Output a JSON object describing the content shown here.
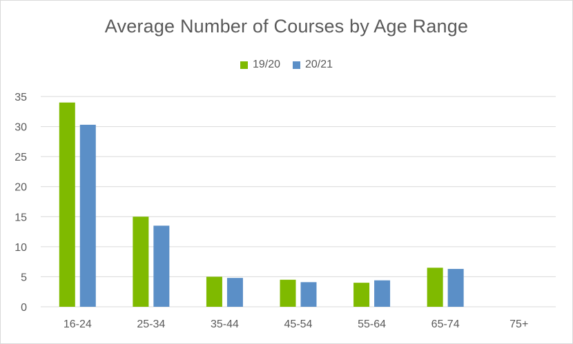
{
  "chart_data": {
    "type": "bar",
    "title": "Average Number of Courses by Age Range",
    "categories": [
      "16-24",
      "25-34",
      "35-44",
      "45-54",
      "55-64",
      "65-74",
      "75+"
    ],
    "series": [
      {
        "name": "19/20",
        "color": "#7fba00",
        "values": [
          34,
          15,
          5,
          4.5,
          4,
          6.5,
          null
        ]
      },
      {
        "name": "20/21",
        "color": "#5b8fc7",
        "values": [
          30.3,
          13.5,
          4.8,
          4.1,
          4.4,
          6.3,
          null
        ]
      }
    ],
    "ylim": [
      0,
      35
    ],
    "yticks": [
      0,
      5,
      10,
      15,
      20,
      25,
      30,
      35
    ],
    "grid": true,
    "legend_position": "top"
  }
}
